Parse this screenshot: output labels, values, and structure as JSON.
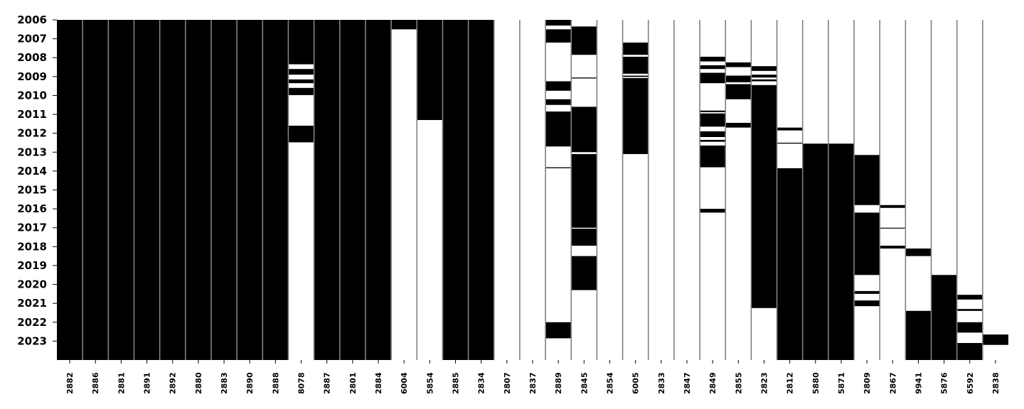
{
  "chart_data": {
    "type": "heatmap",
    "title": "",
    "xlabel": "",
    "ylabel": "",
    "colors": {
      "on": "#000000",
      "off": "#ffffff",
      "separator": "#808080"
    },
    "y_range": [
      2006,
      2024
    ],
    "y_ticks": [
      "2006",
      "2007",
      "2008",
      "2009",
      "2010",
      "2011",
      "2012",
      "2013",
      "2014",
      "2015",
      "2016",
      "2017",
      "2018",
      "2019",
      "2020",
      "2021",
      "2022",
      "2023"
    ],
    "columns": [
      {
        "label": "2882",
        "on": [
          [
            2006.0,
            2024.0
          ]
        ]
      },
      {
        "label": "2886",
        "on": [
          [
            2006.0,
            2024.0
          ]
        ]
      },
      {
        "label": "2881",
        "on": [
          [
            2006.0,
            2024.0
          ]
        ]
      },
      {
        "label": "2891",
        "on": [
          [
            2006.0,
            2024.0
          ]
        ]
      },
      {
        "label": "2892",
        "on": [
          [
            2006.0,
            2024.0
          ]
        ]
      },
      {
        "label": "2880",
        "on": [
          [
            2006.0,
            2024.0
          ]
        ]
      },
      {
        "label": "2883",
        "on": [
          [
            2006.0,
            2024.0
          ]
        ]
      },
      {
        "label": "2890",
        "on": [
          [
            2006.0,
            2024.0
          ]
        ]
      },
      {
        "label": "2888",
        "on": [
          [
            2006.0,
            2024.0
          ]
        ]
      },
      {
        "label": "8078",
        "on": [
          [
            2006.0,
            2008.35
          ],
          [
            2008.6,
            2008.9
          ],
          [
            2009.15,
            2009.35
          ],
          [
            2009.6,
            2009.98
          ],
          [
            2011.6,
            2012.48
          ]
        ]
      },
      {
        "label": "2887",
        "on": [
          [
            2006.0,
            2024.0
          ]
        ]
      },
      {
        "label": "2801",
        "on": [
          [
            2006.0,
            2024.0
          ]
        ]
      },
      {
        "label": "2884",
        "on": [
          [
            2006.0,
            2024.0
          ]
        ]
      },
      {
        "label": "6004",
        "on": [
          [
            2006.0,
            2006.5
          ]
        ]
      },
      {
        "label": "5854",
        "on": [
          [
            2006.0,
            2011.3
          ]
        ]
      },
      {
        "label": "2885",
        "on": [
          [
            2006.0,
            2024.0
          ]
        ]
      },
      {
        "label": "2834",
        "on": [
          [
            2006.0,
            2024.0
          ]
        ]
      },
      {
        "label": "2807",
        "on": []
      },
      {
        "label": "2837",
        "on": []
      },
      {
        "label": "2889",
        "on": [
          [
            2006.0,
            2006.3
          ],
          [
            2006.5,
            2007.2
          ],
          [
            2009.25,
            2009.75
          ],
          [
            2010.2,
            2010.5
          ],
          [
            2010.85,
            2012.7
          ],
          [
            2013.8,
            2013.85
          ],
          [
            2022.0,
            2022.85
          ]
        ]
      },
      {
        "label": "2845",
        "on": [
          [
            2006.35,
            2007.85
          ],
          [
            2009.05,
            2009.1
          ],
          [
            2010.6,
            2013.0
          ],
          [
            2013.1,
            2017.0
          ],
          [
            2017.05,
            2017.95
          ],
          [
            2018.5,
            2020.3
          ]
        ]
      },
      {
        "label": "2854",
        "on": []
      },
      {
        "label": "6005",
        "on": [
          [
            2007.2,
            2007.85
          ],
          [
            2007.95,
            2008.85
          ],
          [
            2008.95,
            2009.02
          ],
          [
            2009.08,
            2013.1
          ]
        ]
      },
      {
        "label": "2833",
        "on": []
      },
      {
        "label": "2847",
        "on": []
      },
      {
        "label": "2849",
        "on": [
          [
            2007.95,
            2008.2
          ],
          [
            2008.4,
            2008.6
          ],
          [
            2008.8,
            2009.35
          ],
          [
            2010.8,
            2010.88
          ],
          [
            2010.95,
            2011.65
          ],
          [
            2011.9,
            2012.2
          ],
          [
            2012.35,
            2012.45
          ],
          [
            2012.65,
            2013.8
          ],
          [
            2016.0,
            2016.2
          ]
        ]
      },
      {
        "label": "2855",
        "on": [
          [
            2008.25,
            2008.5
          ],
          [
            2008.95,
            2009.3
          ],
          [
            2009.4,
            2010.2
          ],
          [
            2011.45,
            2011.7
          ]
        ]
      },
      {
        "label": "2823",
        "on": [
          [
            2008.45,
            2008.7
          ],
          [
            2008.9,
            2009.05
          ],
          [
            2009.15,
            2009.25
          ],
          [
            2009.45,
            2021.25
          ]
        ]
      },
      {
        "label": "2812",
        "on": [
          [
            2011.7,
            2011.85
          ],
          [
            2012.5,
            2012.55
          ],
          [
            2013.85,
            2024.0
          ]
        ]
      },
      {
        "label": "5880",
        "on": [
          [
            2012.55,
            2024.0
          ]
        ]
      },
      {
        "label": "5871",
        "on": [
          [
            2012.55,
            2024.0
          ]
        ]
      },
      {
        "label": "2809",
        "on": [
          [
            2013.15,
            2015.8
          ],
          [
            2016.2,
            2019.5
          ],
          [
            2020.35,
            2020.5
          ],
          [
            2020.85,
            2021.15
          ]
        ]
      },
      {
        "label": "2867",
        "on": [
          [
            2015.8,
            2015.95
          ],
          [
            2017.0,
            2017.02
          ],
          [
            2017.95,
            2018.1
          ]
        ]
      },
      {
        "label": "9941",
        "on": [
          [
            2018.1,
            2018.5
          ],
          [
            2021.4,
            2024.0
          ]
        ]
      },
      {
        "label": "5876",
        "on": [
          [
            2019.5,
            2024.0
          ]
        ]
      },
      {
        "label": "6592",
        "on": [
          [
            2020.55,
            2020.8
          ],
          [
            2021.3,
            2021.4
          ],
          [
            2022.0,
            2022.55
          ],
          [
            2023.1,
            2024.0
          ]
        ]
      },
      {
        "label": "2838",
        "on": [
          [
            2022.65,
            2023.2
          ]
        ]
      }
    ]
  }
}
